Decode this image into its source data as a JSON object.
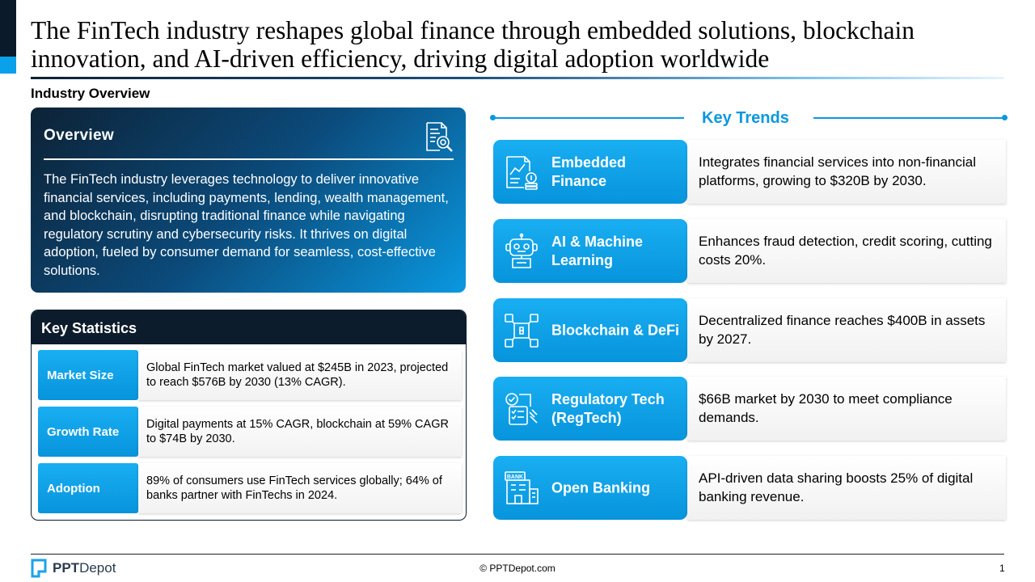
{
  "title": "The FinTech industry reshapes global finance through embedded solutions, blockchain innovation, and AI-driven efficiency, driving digital adoption worldwide",
  "subtitle": "Industry Overview",
  "overview": {
    "heading": "Overview",
    "icon": "document-search-icon",
    "text": "The FinTech industry leverages technology to deliver innovative financial services, including payments, lending, wealth management, and blockchain, disrupting traditional finance while navigating regulatory scrutiny and cybersecurity risks. It thrives on digital adoption, fueled by consumer demand for seamless, cost-effective solutions."
  },
  "key_statistics": {
    "heading": "Key Statistics",
    "rows": [
      {
        "label": "Market Size",
        "text": "Global FinTech market valued at $245B in 2023, projected to reach $576B by 2030 (13% CAGR)."
      },
      {
        "label": "Growth Rate",
        "text": "Digital payments at 15% CAGR, blockchain at 59% CAGR to $74B by 2030."
      },
      {
        "label": "Adoption",
        "text": "89% of consumers use FinTech services globally; 64% of banks partner with FinTechs in 2024."
      }
    ]
  },
  "key_trends": {
    "heading": "Key Trends",
    "items": [
      {
        "name": "Embedded Finance",
        "icon": "financial-report-icon",
        "text": "Integrates financial services into non-financial platforms, growing to $320B by 2030."
      },
      {
        "name": "AI & Machine Learning",
        "icon": "robot-icon",
        "text": "Enhances fraud detection, credit scoring, cutting costs 20%."
      },
      {
        "name": "Blockchain & DeFi",
        "icon": "blockchain-icon",
        "text": "Decentralized finance reaches $400B in assets by 2027."
      },
      {
        "name": "Regulatory Tech (RegTech)",
        "icon": "compliance-checklist-icon",
        "text": "$66B market by 2030 to meet compliance demands."
      },
      {
        "name": "Open Banking",
        "icon": "bank-building-icon",
        "text": "API-driven data sharing boosts 25% of digital banking revenue."
      }
    ]
  },
  "footer": {
    "logo_bold": "PPT",
    "logo_light": "Depot",
    "copyright": "© PPTDepot.com",
    "page": "1"
  },
  "colors": {
    "accent": "#0a98e0",
    "dark": "#0d1c2c"
  }
}
